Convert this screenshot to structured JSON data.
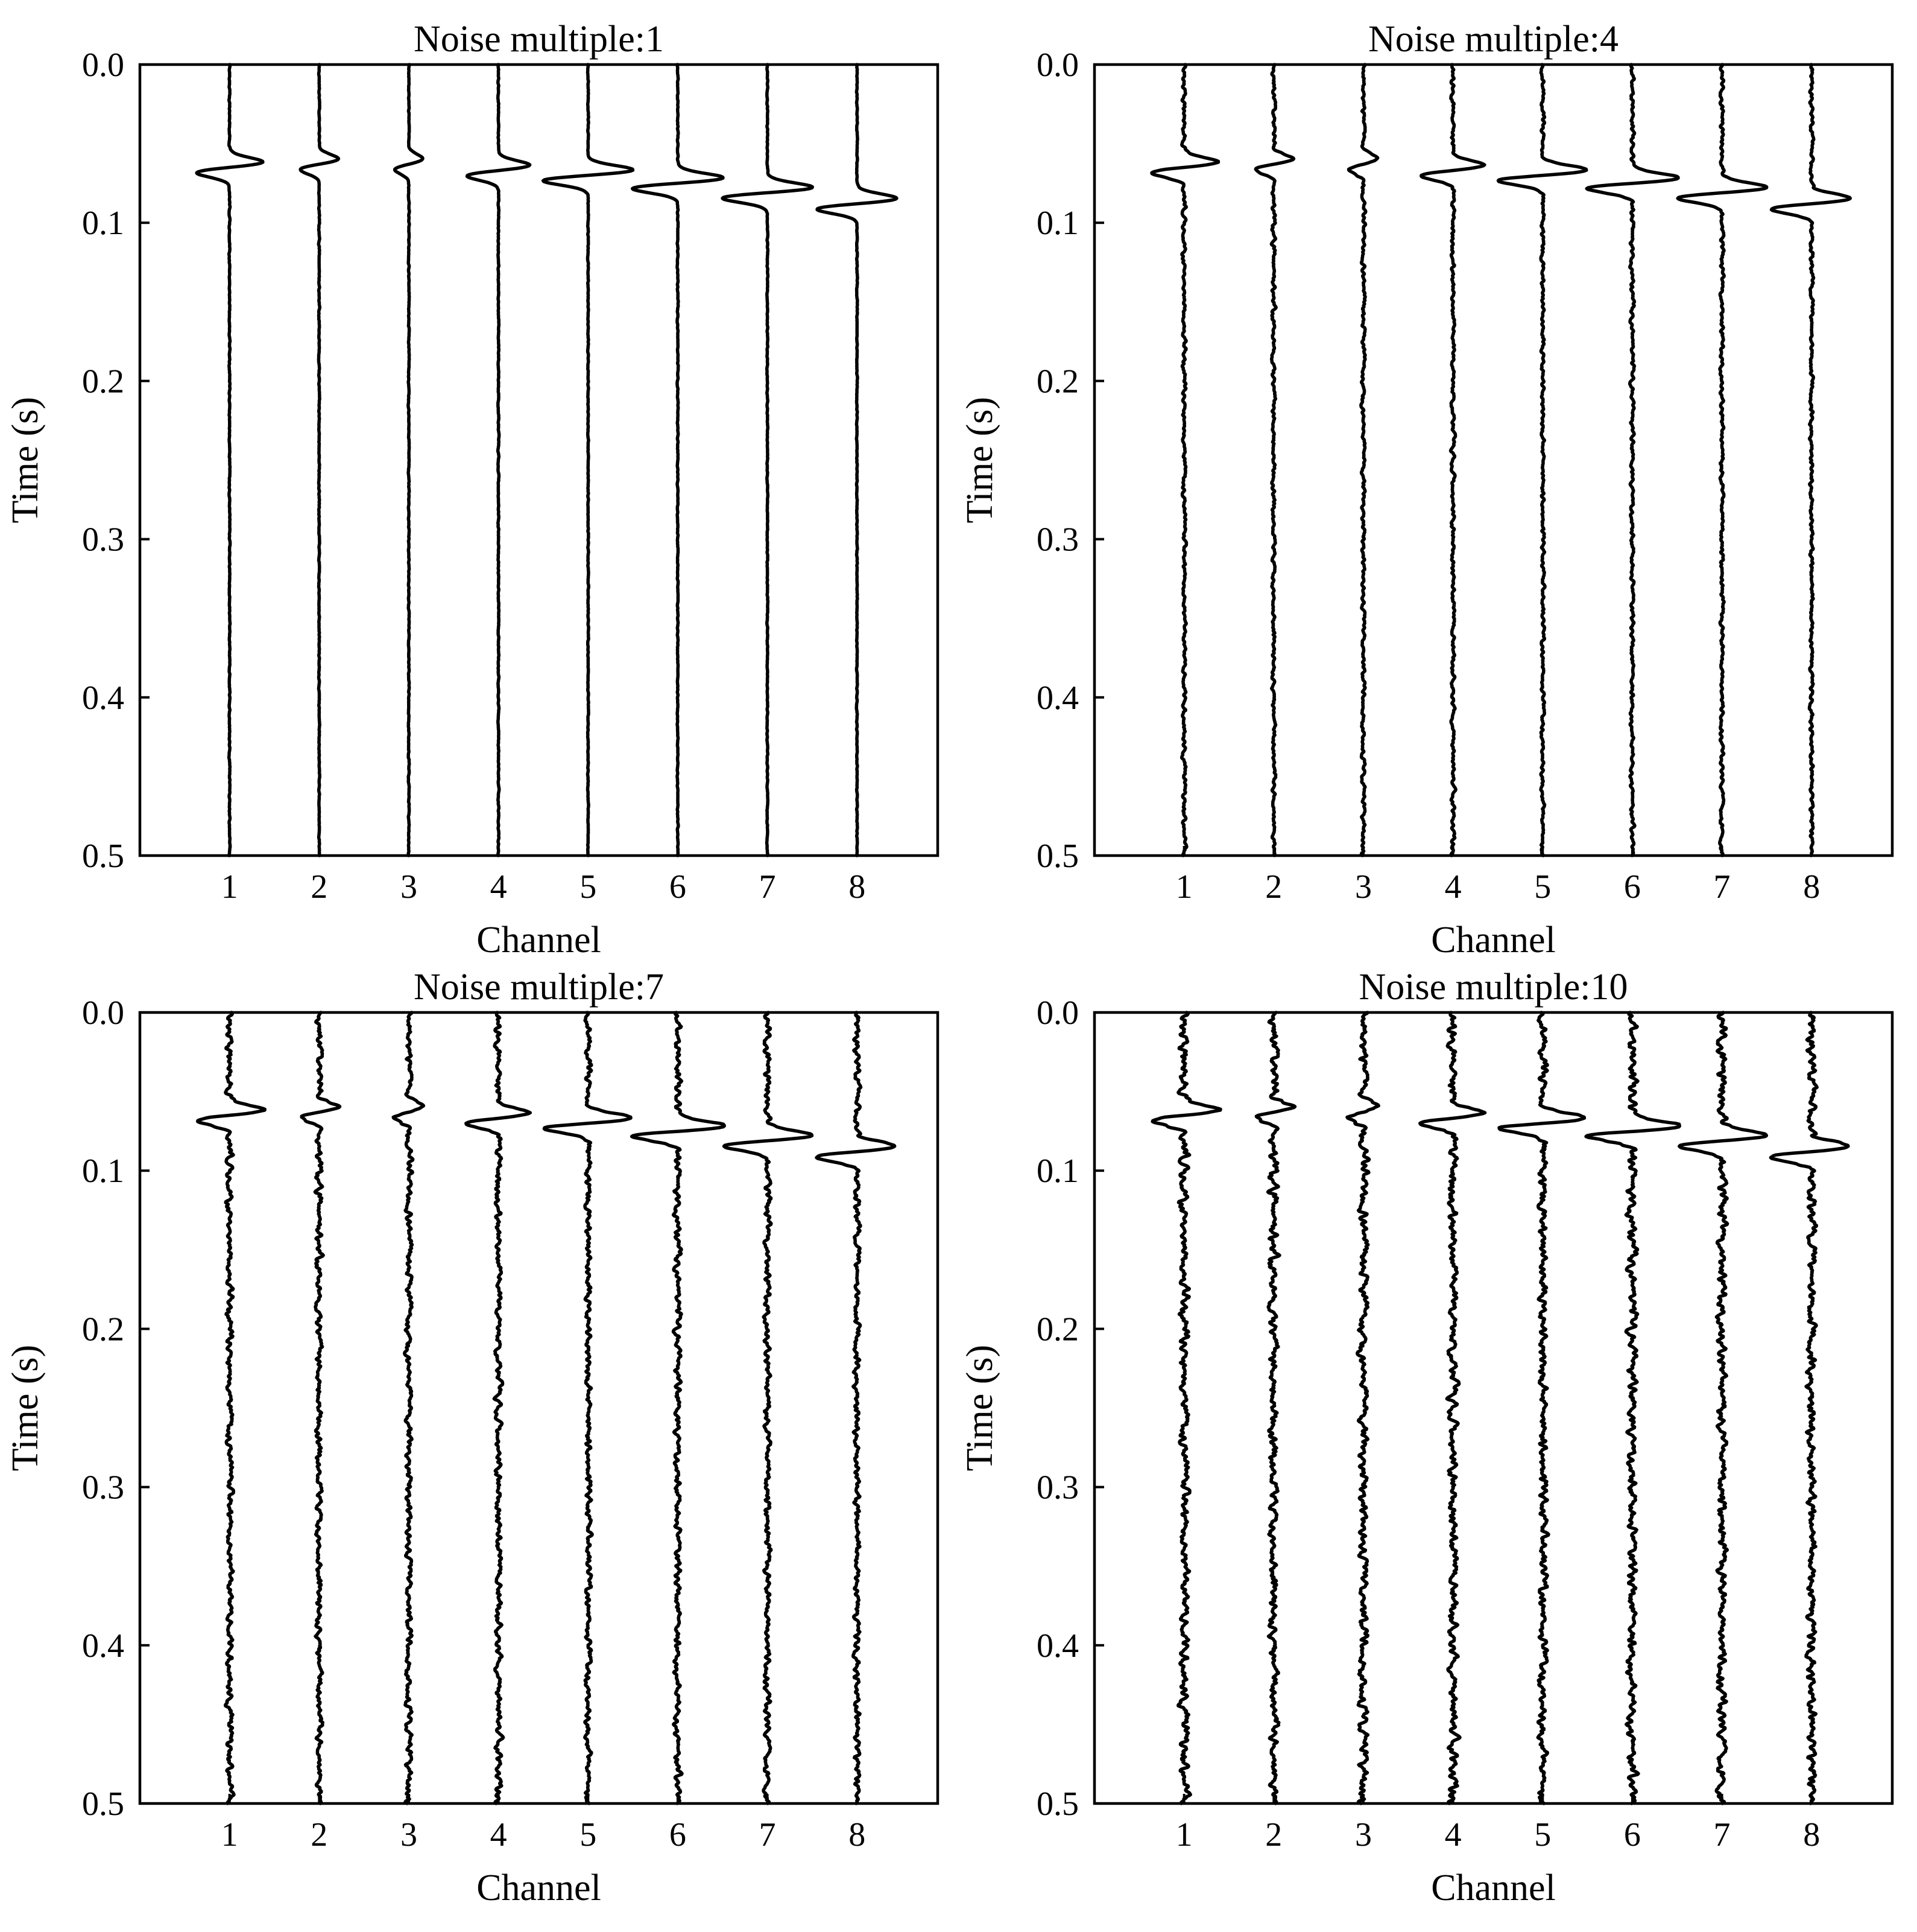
{
  "chart_data": [
    {
      "type": "line",
      "title": "Noise multiple:1",
      "noise_multiple": 1,
      "xlabel": "Channel",
      "ylabel": "Time (s)",
      "xlim": [
        0,
        8.9
      ],
      "ylim": [
        0.5,
        0.0
      ],
      "x_ticks": [
        1,
        2,
        3,
        4,
        5,
        6,
        7,
        8
      ],
      "y_ticks": [
        0.0,
        0.1,
        0.2,
        0.3,
        0.4,
        0.5
      ],
      "x_tick_labels": [
        "1",
        "2",
        "3",
        "4",
        "5",
        "6",
        "7",
        "8"
      ],
      "y_tick_labels": [
        "0.0",
        "0.1",
        "0.2",
        "0.3",
        "0.4",
        "0.5"
      ],
      "grid": false,
      "series": [
        {
          "channel": 1,
          "arrival_time": 0.065
        },
        {
          "channel": 2,
          "arrival_time": 0.063
        },
        {
          "channel": 3,
          "arrival_time": 0.063
        },
        {
          "channel": 4,
          "arrival_time": 0.067
        },
        {
          "channel": 5,
          "arrival_time": 0.07
        },
        {
          "channel": 6,
          "arrival_time": 0.075
        },
        {
          "channel": 7,
          "arrival_time": 0.081
        },
        {
          "channel": 8,
          "arrival_time": 0.088
        }
      ]
    },
    {
      "type": "line",
      "title": "Noise multiple:4",
      "noise_multiple": 4,
      "xlabel": "Channel",
      "ylabel": "Time (s)",
      "xlim": [
        0,
        8.9
      ],
      "ylim": [
        0.5,
        0.0
      ],
      "x_ticks": [
        1,
        2,
        3,
        4,
        5,
        6,
        7,
        8
      ],
      "y_ticks": [
        0.0,
        0.1,
        0.2,
        0.3,
        0.4,
        0.5
      ],
      "x_tick_labels": [
        "1",
        "2",
        "3",
        "4",
        "5",
        "6",
        "7",
        "8"
      ],
      "y_tick_labels": [
        "0.0",
        "0.1",
        "0.2",
        "0.3",
        "0.4",
        "0.5"
      ],
      "grid": false,
      "series": [
        {
          "channel": 1,
          "arrival_time": 0.065
        },
        {
          "channel": 2,
          "arrival_time": 0.063
        },
        {
          "channel": 3,
          "arrival_time": 0.063
        },
        {
          "channel": 4,
          "arrival_time": 0.067
        },
        {
          "channel": 5,
          "arrival_time": 0.07
        },
        {
          "channel": 6,
          "arrival_time": 0.075
        },
        {
          "channel": 7,
          "arrival_time": 0.081
        },
        {
          "channel": 8,
          "arrival_time": 0.088
        }
      ]
    },
    {
      "type": "line",
      "title": "Noise multiple:7",
      "noise_multiple": 7,
      "xlabel": "Channel",
      "ylabel": "Time (s)",
      "xlim": [
        0,
        8.9
      ],
      "ylim": [
        0.5,
        0.0
      ],
      "x_ticks": [
        1,
        2,
        3,
        4,
        5,
        6,
        7,
        8
      ],
      "y_ticks": [
        0.0,
        0.1,
        0.2,
        0.3,
        0.4,
        0.5
      ],
      "x_tick_labels": [
        "1",
        "2",
        "3",
        "4",
        "5",
        "6",
        "7",
        "8"
      ],
      "y_tick_labels": [
        "0.0",
        "0.1",
        "0.2",
        "0.3",
        "0.4",
        "0.5"
      ],
      "grid": false,
      "series": [
        {
          "channel": 1,
          "arrival_time": 0.065
        },
        {
          "channel": 2,
          "arrival_time": 0.063
        },
        {
          "channel": 3,
          "arrival_time": 0.063
        },
        {
          "channel": 4,
          "arrival_time": 0.067
        },
        {
          "channel": 5,
          "arrival_time": 0.07
        },
        {
          "channel": 6,
          "arrival_time": 0.075
        },
        {
          "channel": 7,
          "arrival_time": 0.081
        },
        {
          "channel": 8,
          "arrival_time": 0.088
        }
      ]
    },
    {
      "type": "line",
      "title": "Noise multiple:10",
      "noise_multiple": 10,
      "xlabel": "Channel",
      "ylabel": "Time (s)",
      "xlim": [
        0,
        8.9
      ],
      "ylim": [
        0.5,
        0.0
      ],
      "x_ticks": [
        1,
        2,
        3,
        4,
        5,
        6,
        7,
        8
      ],
      "y_ticks": [
        0.0,
        0.1,
        0.2,
        0.3,
        0.4,
        0.5
      ],
      "x_tick_labels": [
        "1",
        "2",
        "3",
        "4",
        "5",
        "6",
        "7",
        "8"
      ],
      "y_tick_labels": [
        "0.0",
        "0.1",
        "0.2",
        "0.3",
        "0.4",
        "0.5"
      ],
      "grid": false,
      "series": [
        {
          "channel": 1,
          "arrival_time": 0.065
        },
        {
          "channel": 2,
          "arrival_time": 0.063
        },
        {
          "channel": 3,
          "arrival_time": 0.063
        },
        {
          "channel": 4,
          "arrival_time": 0.067
        },
        {
          "channel": 5,
          "arrival_time": 0.07
        },
        {
          "channel": 6,
          "arrival_time": 0.075
        },
        {
          "channel": 7,
          "arrival_time": 0.081
        },
        {
          "channel": 8,
          "arrival_time": 0.088
        }
      ]
    }
  ]
}
